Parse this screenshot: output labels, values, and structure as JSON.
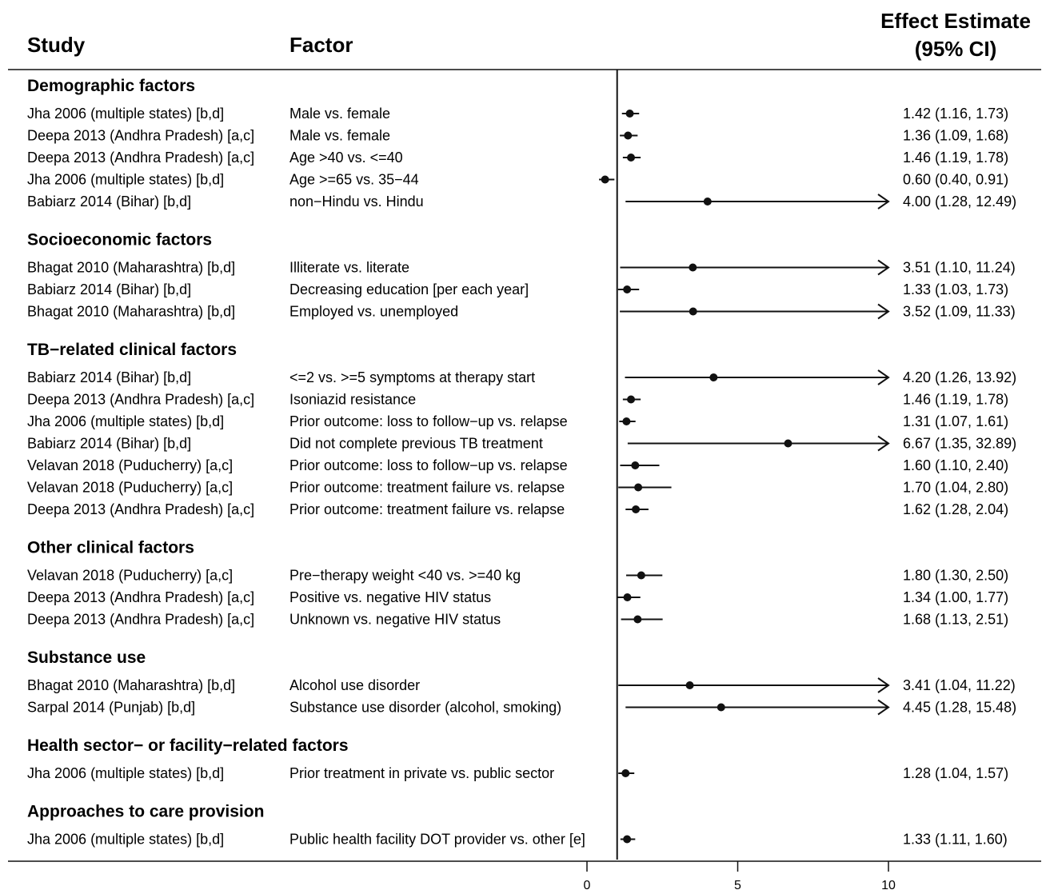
{
  "chart_data": {
    "type": "forest",
    "columns": {
      "study": "Study",
      "factor": "Factor",
      "estimate_line1": "Effect Estimate",
      "estimate_line2": "(95% CI)"
    },
    "reference_line": 1,
    "x_axis": {
      "ticks": [
        0,
        5,
        10
      ],
      "xlim": [
        0,
        10
      ]
    },
    "groups": [
      {
        "name": "Demographic factors",
        "rows": [
          {
            "study": "Jha 2006 (multiple states) [b,d]",
            "factor": "Male vs. female",
            "est": 1.42,
            "lo": 1.16,
            "hi": 1.73,
            "label": "1.42 (1.16, 1.73)"
          },
          {
            "study": "Deepa 2013 (Andhra Pradesh) [a,c]",
            "factor": "Male vs. female",
            "est": 1.36,
            "lo": 1.09,
            "hi": 1.68,
            "label": "1.36 (1.09, 1.68)"
          },
          {
            "study": "Deepa 2013 (Andhra Pradesh) [a,c]",
            "factor": "Age >40 vs. <=40",
            "est": 1.46,
            "lo": 1.19,
            "hi": 1.78,
            "label": "1.46 (1.19, 1.78)"
          },
          {
            "study": "Jha 2006 (multiple states) [b,d]",
            "factor": "Age >=65 vs. 35−44",
            "est": 0.6,
            "lo": 0.4,
            "hi": 0.91,
            "label": "0.60 (0.40, 0.91)"
          },
          {
            "study": "Babiarz 2014 (Bihar) [b,d]",
            "factor": "non−Hindu vs. Hindu",
            "est": 4.0,
            "lo": 1.28,
            "hi": 12.49,
            "label": "4.00 (1.28, 12.49)"
          }
        ]
      },
      {
        "name": "Socioeconomic factors",
        "rows": [
          {
            "study": "Bhagat 2010 (Maharashtra) [b,d]",
            "factor": "Illiterate vs. literate",
            "est": 3.51,
            "lo": 1.1,
            "hi": 11.24,
            "label": "3.51 (1.10, 11.24)"
          },
          {
            "study": "Babiarz 2014 (Bihar) [b,d]",
            "factor": "Decreasing education [per each year]",
            "est": 1.33,
            "lo": 1.03,
            "hi": 1.73,
            "label": "1.33 (1.03, 1.73)"
          },
          {
            "study": "Bhagat 2010 (Maharashtra) [b,d]",
            "factor": "Employed vs. unemployed",
            "est": 3.52,
            "lo": 1.09,
            "hi": 11.33,
            "label": "3.52 (1.09, 11.33)"
          }
        ]
      },
      {
        "name": "TB−related clinical factors",
        "rows": [
          {
            "study": "Babiarz 2014 (Bihar) [b,d]",
            "factor": "<=2 vs. >=5 symptoms at therapy start",
            "est": 4.2,
            "lo": 1.26,
            "hi": 13.92,
            "label": "4.20 (1.26, 13.92)"
          },
          {
            "study": "Deepa 2013 (Andhra Pradesh) [a,c]",
            "factor": "Isoniazid resistance",
            "est": 1.46,
            "lo": 1.19,
            "hi": 1.78,
            "label": "1.46 (1.19, 1.78)"
          },
          {
            "study": "Jha 2006 (multiple states) [b,d]",
            "factor": "Prior outcome: loss to follow−up vs. relapse",
            "est": 1.31,
            "lo": 1.07,
            "hi": 1.61,
            "label": "1.31 (1.07, 1.61)"
          },
          {
            "study": "Babiarz 2014 (Bihar) [b,d]",
            "factor": "Did not complete previous TB treatment",
            "est": 6.67,
            "lo": 1.35,
            "hi": 32.89,
            "label": "6.67 (1.35, 32.89)"
          },
          {
            "study": "Velavan 2018 (Puducherry) [a,c]",
            "factor": "Prior outcome: loss to follow−up vs. relapse",
            "est": 1.6,
            "lo": 1.1,
            "hi": 2.4,
            "label": "1.60 (1.10, 2.40)"
          },
          {
            "study": "Velavan 2018 (Puducherry) [a,c]",
            "factor": "Prior outcome: treatment failure vs. relapse",
            "est": 1.7,
            "lo": 1.04,
            "hi": 2.8,
            "label": "1.70 (1.04, 2.80)"
          },
          {
            "study": "Deepa 2013 (Andhra Pradesh) [a,c]",
            "factor": "Prior outcome: treatment failure vs. relapse",
            "est": 1.62,
            "lo": 1.28,
            "hi": 2.04,
            "label": "1.62 (1.28, 2.04)"
          }
        ]
      },
      {
        "name": "Other clinical factors",
        "rows": [
          {
            "study": "Velavan 2018 (Puducherry) [a,c]",
            "factor": "Pre−therapy weight <40 vs. >=40 kg",
            "est": 1.8,
            "lo": 1.3,
            "hi": 2.5,
            "label": "1.80 (1.30, 2.50)"
          },
          {
            "study": "Deepa 2013 (Andhra Pradesh) [a,c]",
            "factor": "Positive vs. negative HIV status",
            "est": 1.34,
            "lo": 1.0,
            "hi": 1.77,
            "label": "1.34 (1.00, 1.77)"
          },
          {
            "study": "Deepa 2013 (Andhra Pradesh) [a,c]",
            "factor": "Unknown vs. negative HIV status",
            "est": 1.68,
            "lo": 1.13,
            "hi": 2.51,
            "label": "1.68 (1.13, 2.51)"
          }
        ]
      },
      {
        "name": "Substance use",
        "rows": [
          {
            "study": "Bhagat 2010 (Maharashtra) [b,d]",
            "factor": "Alcohol use disorder",
            "est": 3.41,
            "lo": 1.04,
            "hi": 11.22,
            "label": "3.41 (1.04, 11.22)"
          },
          {
            "study": "Sarpal 2014 (Punjab) [b,d]",
            "factor": "Substance use disorder (alcohol, smoking)",
            "est": 4.45,
            "lo": 1.28,
            "hi": 15.48,
            "label": "4.45 (1.28, 15.48)"
          }
        ]
      },
      {
        "name": "Health sector− or facility−related factors",
        "rows": [
          {
            "study": "Jha 2006 (multiple states) [b,d]",
            "factor": "Prior treatment in private vs. public sector",
            "est": 1.28,
            "lo": 1.04,
            "hi": 1.57,
            "label": "1.28 (1.04, 1.57)"
          }
        ]
      },
      {
        "name": "Approaches to care provision",
        "rows": [
          {
            "study": "Jha 2006 (multiple states) [b,d]",
            "factor": "Public health facility DOT provider vs. other [e]",
            "est": 1.33,
            "lo": 1.11,
            "hi": 1.6,
            "label": "1.33 (1.11, 1.60)"
          }
        ]
      }
    ]
  }
}
